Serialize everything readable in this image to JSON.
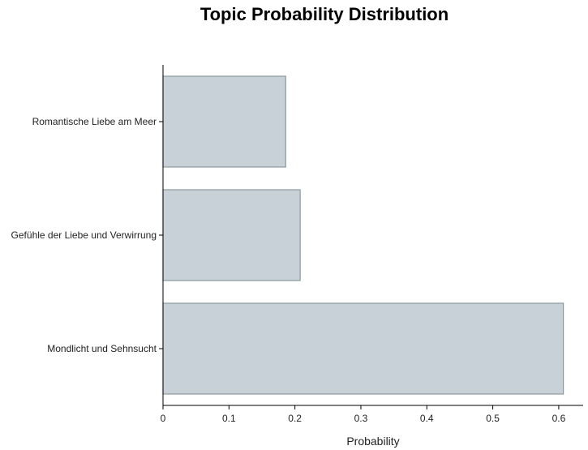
{
  "chart_data": {
    "type": "bar",
    "orientation": "horizontal",
    "title": "Topic Probability Distribution",
    "xlabel": "Probability",
    "ylabel": "",
    "categories": [
      "Romantische Liebe am Meer",
      "Gefühle der Liebe und Verwirrung",
      "Mondlicht und Sehnsucht"
    ],
    "values": [
      0.186,
      0.208,
      0.607
    ],
    "xlim": [
      0,
      0.637
    ],
    "xticks": [
      "0",
      "0.1",
      "0.2",
      "0.3",
      "0.4",
      "0.5",
      "0.6"
    ],
    "grid": false,
    "bar_color": "#c8d1d7",
    "bar_edge_color": "#8a9a9c"
  }
}
